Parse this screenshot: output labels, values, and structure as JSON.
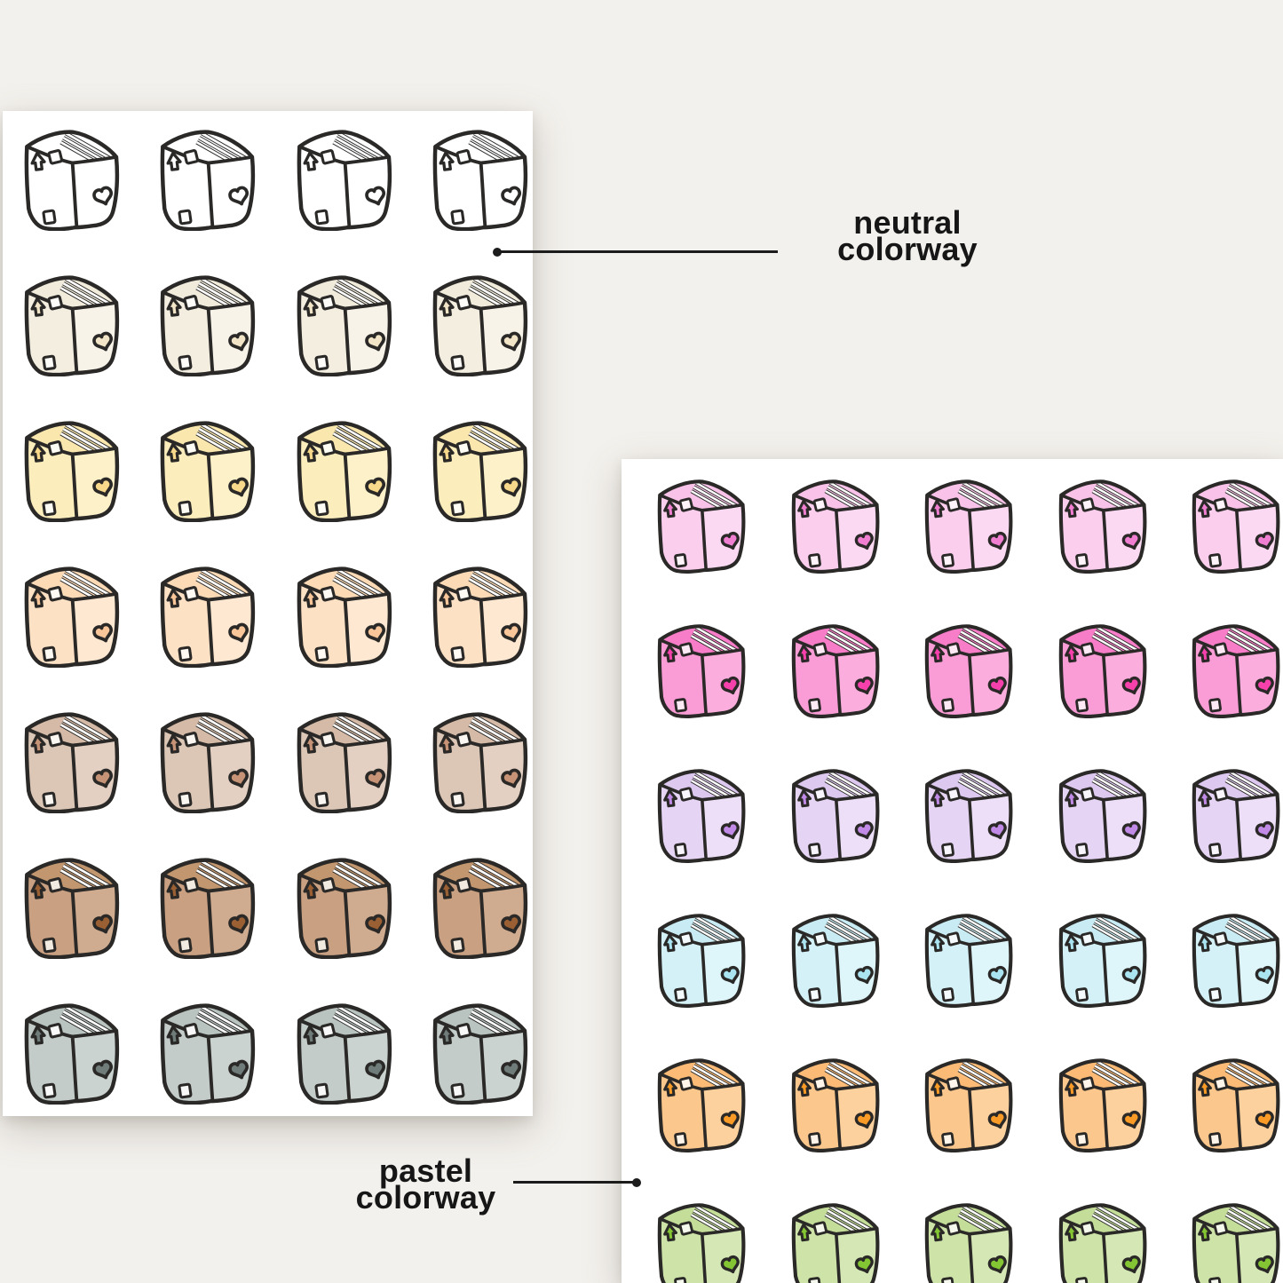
{
  "page": {
    "background_color": "#f3f1ed",
    "sheet_color": "#ffffff",
    "ink_color": "#2a2927",
    "text_color": "#161616"
  },
  "callouts": {
    "neutral": {
      "line1": "neutral",
      "line2": "colorway"
    },
    "pastel": {
      "line1": "pastel",
      "line2": "colorway"
    }
  },
  "icons": {
    "arrow": "up-arrow-icon",
    "heart": "heart-icon",
    "tape": "tape-stripes-icon",
    "square": "shipping-label-icon"
  },
  "sheets": [
    {
      "key": "neutral",
      "name": "neutral colorway sticker sheet",
      "columns": 4,
      "rows": [
        {
          "name": "white",
          "right": "#ffffff",
          "left": "#ffffff",
          "top": "#ffffff",
          "accent": "#ffffff",
          "label": "#ffffff"
        },
        {
          "name": "cream",
          "right": "#f8f3e9",
          "left": "#f4eee1",
          "top": "#f1ebdb",
          "accent": "#f2e4c6",
          "label": "#fdfcf8"
        },
        {
          "name": "light-yellow",
          "right": "#fdf1c9",
          "left": "#fbedbc",
          "top": "#f9e7ae",
          "accent": "#f8d88a",
          "label": "#fefdf5"
        },
        {
          "name": "peach",
          "right": "#fee8d1",
          "left": "#fde1c5",
          "top": "#fcdab6",
          "accent": "#f9c69a",
          "label": "#fffaf4"
        },
        {
          "name": "rosy-taupe",
          "right": "#e3d0c2",
          "left": "#dcc7b6",
          "top": "#d5bba7",
          "accent": "#c79376",
          "label": "#faf6f2"
        },
        {
          "name": "brown",
          "right": "#cfab8f",
          "left": "#c9a081",
          "top": "#c2976f",
          "accent": "#9a5f33",
          "label": "#f2ebe2"
        },
        {
          "name": "gray",
          "right": "#cbd3d0",
          "left": "#c3ccc9",
          "top": "#b9c4c0",
          "accent": "#6f7c79",
          "label": "#f7f8f7"
        }
      ]
    },
    {
      "key": "pastel",
      "name": "pastel colorway sticker sheet",
      "columns": 5,
      "rows": [
        {
          "name": "light-pink",
          "right": "#fcd9f2",
          "left": "#fbceee",
          "top": "#f9c2e8",
          "accent": "#f07fd2",
          "label": "#fef4fa"
        },
        {
          "name": "hot-pink",
          "right": "#fbaedd",
          "left": "#fa9cd6",
          "top": "#f87dc8",
          "accent": "#f640ac",
          "label": "#fdeaf5"
        },
        {
          "name": "lavender",
          "right": "#ecdff7",
          "left": "#e5d4f3",
          "top": "#ddc8f0",
          "accent": "#c08ae6",
          "label": "#f9f5fd"
        },
        {
          "name": "baby-blue",
          "right": "#def5f9",
          "left": "#d4f1f7",
          "top": "#c9ecf4",
          "accent": "#aae4f1",
          "label": "#f5fbfd"
        },
        {
          "name": "orange",
          "right": "#fdd19d",
          "left": "#fcc78c",
          "top": "#fbbb76",
          "accent": "#f99b26",
          "label": "#fff5ea"
        },
        {
          "name": "green",
          "right": "#d4e7b4",
          "left": "#cde3a8",
          "top": "#c4de99",
          "accent": "#83c532",
          "label": "#f5f9ed"
        }
      ]
    }
  ]
}
